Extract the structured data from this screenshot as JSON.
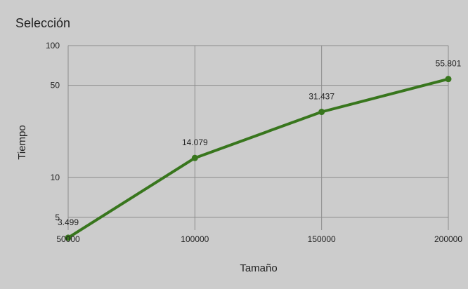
{
  "chart_data": {
    "type": "line",
    "title": "Selección",
    "xlabel": "Tamaño",
    "ylabel": "Tiempo",
    "x": [
      50000,
      100000,
      150000,
      200000
    ],
    "x_tick_labels": [
      "50000",
      "100000",
      "150000",
      "200000"
    ],
    "series": [
      {
        "values": [
          3.499,
          14.079,
          31.437,
          55.801
        ],
        "data_labels": [
          "3.499",
          "14.079",
          "31.437",
          "55.801"
        ],
        "color": "#38761d"
      }
    ],
    "y_scale": "log",
    "ylim": [
      4,
      100
    ],
    "y_ticks": [
      5,
      10,
      50,
      100
    ],
    "y_tick_labels": [
      "5",
      "10",
      "50",
      "100"
    ],
    "xlim": [
      50000,
      200000
    ],
    "grid": true,
    "legend": "none"
  },
  "colors": {
    "background": "#cccccc",
    "gridline": "#8c8c8c",
    "line": "#38761d"
  }
}
